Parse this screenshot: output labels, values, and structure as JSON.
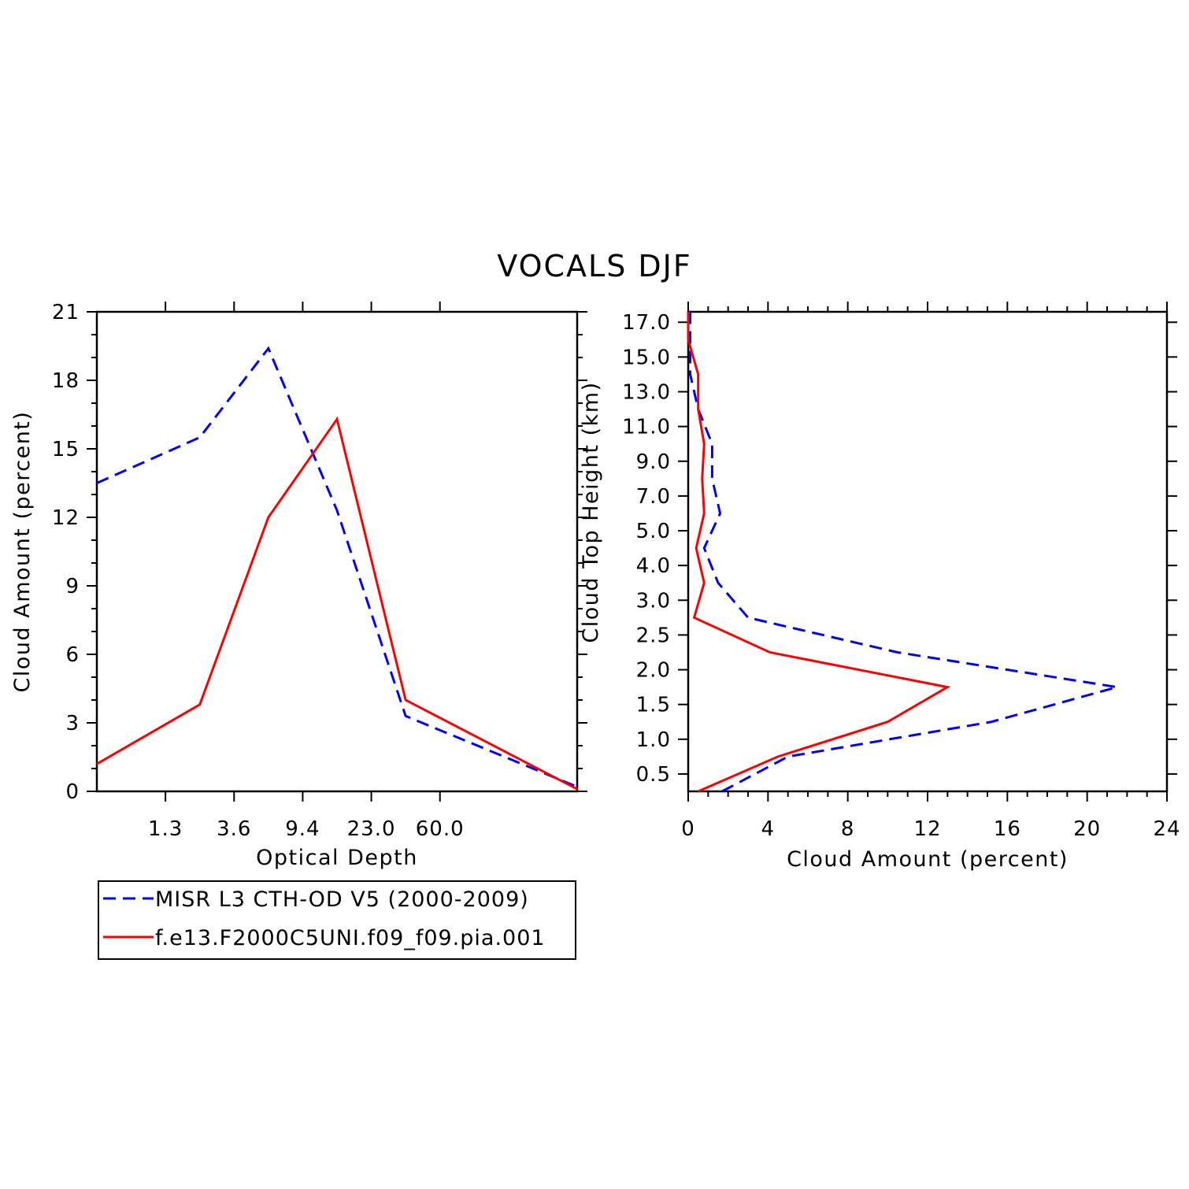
{
  "title": "VOCALS DJF",
  "colors": {
    "obs": "#0000ff",
    "model": "#ff0000"
  },
  "legend": {
    "placement": "below-left",
    "entries": [
      {
        "label": "MISR L3 CTH-OD V5 (2000-2009)",
        "style": "dashed",
        "color": "#0000ff"
      },
      {
        "label": "f.e13.F2000C5UNI.f09_f09.pia.001",
        "style": "solid",
        "color": "#ff0000"
      }
    ]
  },
  "chart_data": [
    {
      "type": "line",
      "xlabel": "Optical Depth",
      "ylabel": "Cloud Amount (percent)",
      "ylim": [
        0,
        21
      ],
      "x_tick_labels": [
        "1.3",
        "3.6",
        "9.4",
        "23.0",
        "60.0"
      ],
      "y_tick_labels": [
        "0",
        "3",
        "6",
        "9",
        "12",
        "15",
        "18",
        "21"
      ],
      "series": [
        {
          "name": "MISR L3 CTH-OD V5 (2000-2009)",
          "values": [
            13.5,
            15.5,
            19.4,
            12.3,
            3.3,
            0.2
          ]
        },
        {
          "name": "f.e13.F2000C5UNI.f09_f09.pia.001",
          "values": [
            1.2,
            3.8,
            12.0,
            16.3,
            4.0,
            0.1
          ]
        }
      ]
    },
    {
      "type": "line",
      "xlabel": "Cloud Amount (percent)",
      "ylabel": "Cloud Top Height (km)",
      "xlim": [
        0,
        24
      ],
      "x_tick_labels": [
        "0",
        "4",
        "8",
        "12",
        "16",
        "20",
        "24"
      ],
      "y_tick_labels": [
        "0.5",
        "1.0",
        "1.5",
        "2.0",
        "2.5",
        "3.0",
        "4.0",
        "5.0",
        "7.0",
        "9.0",
        "11.0",
        "13.0",
        "15.0",
        "17.0"
      ],
      "series": [
        {
          "name": "MISR L3 CTH-OD V5 (2000-2009)",
          "x": [
            1.7,
            5.0,
            15.2,
            21.5,
            10.5,
            3.0,
            1.5,
            0.8,
            1.6,
            1.2,
            1.2,
            0.5,
            0.1,
            0.1
          ],
          "y": [
            "0.25",
            "0.75",
            "1.25",
            "1.75",
            "2.25",
            "2.75",
            "3.5",
            "4.5",
            "6.0",
            "8.0",
            "10.0",
            "12.0",
            "14.0",
            "16.0"
          ]
        },
        {
          "name": "f.e13.F2000C5UNI.f09_f09.pia.001",
          "x": [
            0.5,
            4.5,
            10.0,
            13.0,
            4.1,
            0.3,
            0.8,
            0.4,
            0.8,
            0.7,
            0.8,
            0.5,
            0.5,
            0.0
          ],
          "y": [
            "0.25",
            "0.75",
            "1.25",
            "1.75",
            "2.25",
            "2.75",
            "3.5",
            "4.5",
            "6.0",
            "8.0",
            "10.0",
            "12.0",
            "14.0",
            "16.0"
          ]
        }
      ]
    }
  ]
}
